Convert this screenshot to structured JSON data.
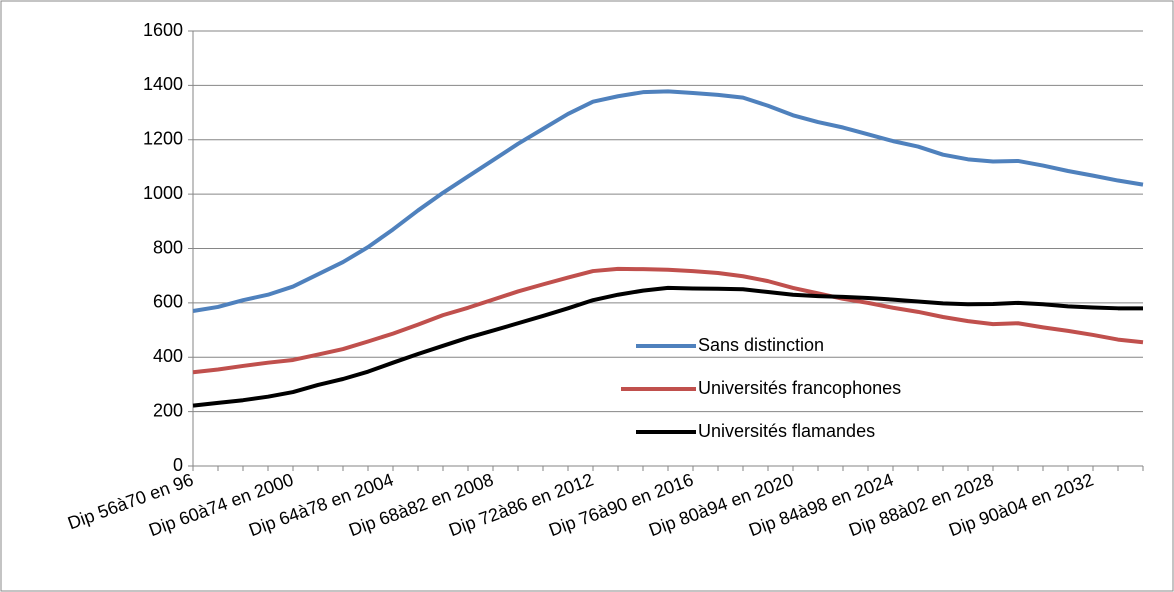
{
  "chart_data": {
    "type": "line",
    "categories": [
      "Dip 56à70 en 96",
      null,
      null,
      null,
      "Dip 60à74 en 2000",
      null,
      null,
      null,
      "Dip 64à78 en 2004",
      null,
      null,
      null,
      "Dip 68à82 en 2008",
      null,
      null,
      null,
      "Dip 72à86 en 2012",
      null,
      null,
      null,
      "Dip 76à90 en 2016",
      null,
      null,
      null,
      "Dip 80à94 en 2020",
      null,
      null,
      null,
      "Dip 84à98 en 2024",
      null,
      null,
      null,
      "Dip 88à02 en 2028",
      null,
      null,
      null,
      "Dip 90à04 en 2032",
      null,
      null
    ],
    "series": [
      {
        "name": "Sans distinction",
        "color": "#4f81bd",
        "values": [
          570,
          585,
          610,
          630,
          660,
          705,
          750,
          805,
          870,
          940,
          1005,
          1065,
          1125,
          1185,
          1240,
          1295,
          1340,
          1360,
          1375,
          1378,
          1372,
          1365,
          1355,
          1325,
          1290,
          1265,
          1245,
          1220,
          1195,
          1175,
          1145,
          1128,
          1120,
          1122,
          1105,
          1085,
          1068,
          1050,
          1035
        ]
      },
      {
        "name": "Universités francophones",
        "color": "#c0504d",
        "values": [
          345,
          355,
          368,
          380,
          390,
          410,
          430,
          458,
          487,
          520,
          555,
          582,
          612,
          642,
          668,
          693,
          717,
          725,
          724,
          722,
          717,
          710,
          698,
          680,
          655,
          635,
          615,
          600,
          582,
          567,
          548,
          533,
          522,
          525,
          510,
          497,
          482,
          465,
          455
        ]
      },
      {
        "name": "Universités flamandes",
        "color": "#000000",
        "values": [
          222,
          232,
          242,
          255,
          272,
          298,
          320,
          347,
          380,
          412,
          442,
          472,
          498,
          525,
          552,
          580,
          610,
          630,
          645,
          655,
          653,
          652,
          650,
          640,
          630,
          625,
          622,
          618,
          612,
          605,
          598,
          595,
          596,
          600,
          595,
          587,
          583,
          580,
          580
        ]
      }
    ],
    "ylim": [
      0,
      1600
    ],
    "yticks": [
      0,
      200,
      400,
      600,
      800,
      1000,
      1200,
      1400,
      1600
    ],
    "grid": true
  }
}
